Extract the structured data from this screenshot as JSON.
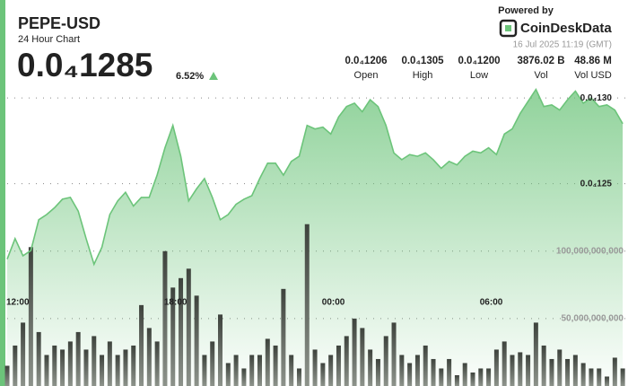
{
  "header": {
    "title": "PEPE-USD",
    "subtitle": "24 Hour Chart",
    "price": "0.0₄1285",
    "change": "6.52%",
    "powered_by": "Powered by",
    "brand": "CoinDeskData",
    "timestamp": "16 Jul 2025 11:19 (GMT)",
    "stats": [
      {
        "value": "0.0₄1206",
        "label": "Open"
      },
      {
        "value": "0.0₄1305",
        "label": "High"
      },
      {
        "value": "0.0₄1200",
        "label": "Low"
      },
      {
        "value": "3876.02 B",
        "label": "Vol"
      },
      {
        "value": "48.86 M",
        "label": "Vol USD"
      }
    ]
  },
  "chart_data": {
    "type": "area",
    "x": [
      11.6,
      11.9,
      12.2,
      12.5,
      12.8,
      13.1,
      13.4,
      13.7,
      14.0,
      14.3,
      14.6,
      14.9,
      15.2,
      15.5,
      15.8,
      16.1,
      16.4,
      16.7,
      17.0,
      17.3,
      17.6,
      17.9,
      18.2,
      18.5,
      18.8,
      19.1,
      19.4,
      19.7,
      20.0,
      20.3,
      20.6,
      20.9,
      21.2,
      21.5,
      21.8,
      22.1,
      22.4,
      22.7,
      23.0,
      23.3,
      23.6,
      23.9,
      24.2,
      24.5,
      24.8,
      25.1,
      25.4,
      25.7,
      26.0,
      26.3,
      26.6,
      26.9,
      27.2,
      27.5,
      27.8,
      28.1,
      28.4,
      28.7,
      29.0,
      29.3,
      29.6,
      29.9,
      30.2,
      30.5,
      30.8,
      31.1,
      31.4,
      31.7,
      32.0,
      32.3,
      32.6,
      32.9,
      33.2,
      33.5,
      33.8,
      34.1,
      34.4,
      34.7,
      35.0
    ],
    "xlim": [
      11.6,
      35.2
    ],
    "xticks": [
      {
        "value": 12,
        "label": "12:00"
      },
      {
        "value": 18,
        "label": "18:00"
      },
      {
        "value": 24,
        "label": "00:00"
      },
      {
        "value": 30,
        "label": "06:00"
      }
    ],
    "ylim": [
      1.132e-05,
      1.309e-05
    ],
    "yticks": [
      {
        "value": 1.3e-05,
        "label": "0.0₄130"
      },
      {
        "value": 1.25e-05,
        "label": "0.0₄125"
      }
    ],
    "y2lim": [
      0,
      225000000000
    ],
    "y2ticks": [
      {
        "value": 100000000000,
        "label": "100,000,000,000"
      },
      {
        "value": 50000000000,
        "label": "50,000,000,000"
      }
    ],
    "grid": true,
    "series": [
      {
        "color": "#6cc47a",
        "values": [
          1.206e-05,
          1.218e-05,
          1.208e-05,
          1.211e-05,
          1.229e-05,
          1.232e-05,
          1.236e-05,
          1.241e-05,
          1.242e-05,
          1.234e-05,
          1.218e-05,
          1.203e-05,
          1.213e-05,
          1.232e-05,
          1.24e-05,
          1.245e-05,
          1.237e-05,
          1.242e-05,
          1.242e-05,
          1.255e-05,
          1.271e-05,
          1.284e-05,
          1.266e-05,
          1.24e-05,
          1.247e-05,
          1.253e-05,
          1.242e-05,
          1.229e-05,
          1.232e-05,
          1.238e-05,
          1.241e-05,
          1.243e-05,
          1.253e-05,
          1.262e-05,
          1.262e-05,
          1.255e-05,
          1.263e-05,
          1.266e-05,
          1.284e-05,
          1.282e-05,
          1.283e-05,
          1.279e-05,
          1.289e-05,
          1.295e-05,
          1.297e-05,
          1.292e-05,
          1.299e-05,
          1.295e-05,
          1.284e-05,
          1.268e-05,
          1.264e-05,
          1.267e-05,
          1.266e-05,
          1.268e-05,
          1.264e-05,
          1.259e-05,
          1.263e-05,
          1.261e-05,
          1.266e-05,
          1.269e-05,
          1.268e-05,
          1.271e-05,
          1.267e-05,
          1.279e-05,
          1.282e-05,
          1.291e-05,
          1.298e-05,
          1.305e-05,
          1.295e-05,
          1.296e-05,
          1.293e-05,
          1.299e-05,
          1.304e-05,
          1.297e-05,
          1.3e-05,
          1.295e-05,
          1.296e-05,
          1.293e-05,
          1.285e-05
        ]
      },
      {
        "type": "bar",
        "axis": "y2",
        "color": "#454a44",
        "values": [
          15000000000,
          30000000000,
          47000000000,
          103000000000,
          40000000000,
          23000000000,
          30000000000,
          27000000000,
          33000000000,
          40000000000,
          27000000000,
          37000000000,
          23000000000,
          33000000000,
          23000000000,
          27000000000,
          30000000000,
          60000000000,
          43000000000,
          33000000000,
          100000000000,
          73000000000,
          80000000000,
          87000000000,
          67000000000,
          23000000000,
          33000000000,
          53000000000,
          17000000000,
          23000000000,
          13000000000,
          23000000000,
          23000000000,
          35000000000,
          30000000000,
          72000000000,
          23000000000,
          13000000000,
          120000000000,
          27000000000,
          17000000000,
          23000000000,
          30000000000,
          37000000000,
          50000000000,
          43000000000,
          27000000000,
          20000000000,
          37000000000,
          47000000000,
          23000000000,
          17000000000,
          23000000000,
          30000000000,
          20000000000,
          13000000000,
          20000000000,
          8000000000,
          17000000000,
          10000000000,
          13000000000,
          13000000000,
          27000000000,
          33000000000,
          23000000000,
          25000000000,
          23000000000,
          47000000000,
          30000000000,
          20000000000,
          27000000000,
          20000000000,
          23000000000,
          17000000000,
          13000000000,
          13000000000,
          7000000000,
          21000000000,
          13000000000
        ]
      }
    ]
  }
}
